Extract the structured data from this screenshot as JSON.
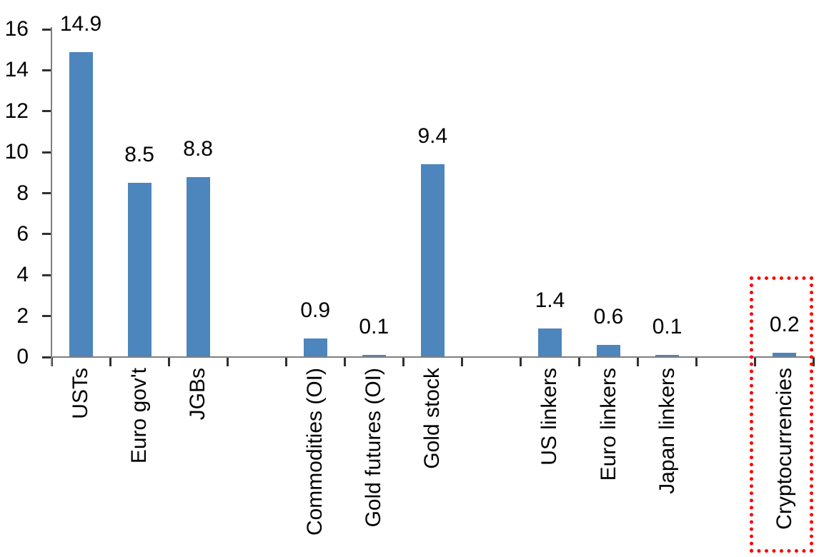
{
  "chart_data": {
    "type": "bar",
    "categories": [
      "USTs",
      "Euro gov't",
      "JGBs",
      "Commodities (OI)",
      "Gold futures (OI)",
      "Gold stock",
      "US linkers",
      "Euro linkers",
      "Japan linkers",
      "Cryptocurrencies"
    ],
    "values": [
      14.9,
      8.5,
      8.8,
      0.9,
      0.1,
      9.4,
      1.4,
      0.6,
      0.1,
      0.2
    ],
    "data_labels": [
      "14.9",
      "8.5",
      "8.8",
      "0.9",
      "0.1",
      "9.4",
      "1.4",
      "0.6",
      "0.1",
      "0.2"
    ],
    "group_breaks_after": [
      2,
      5,
      8
    ],
    "ylim": [
      0,
      16
    ],
    "ytick_step": 2,
    "yticks": [
      0,
      2,
      4,
      6,
      8,
      10,
      12,
      14,
      16
    ],
    "grid": false,
    "legend": false,
    "title": "",
    "xlabel": "",
    "ylabel": "",
    "bar_color": "#4d85bd",
    "axis_color": "#7f7f7f",
    "tick_color": "#303030",
    "text_color": "#000000",
    "highlight": {
      "category": "Cryptocurrencies",
      "style": "dotted-box",
      "color": "#ff0000"
    }
  }
}
